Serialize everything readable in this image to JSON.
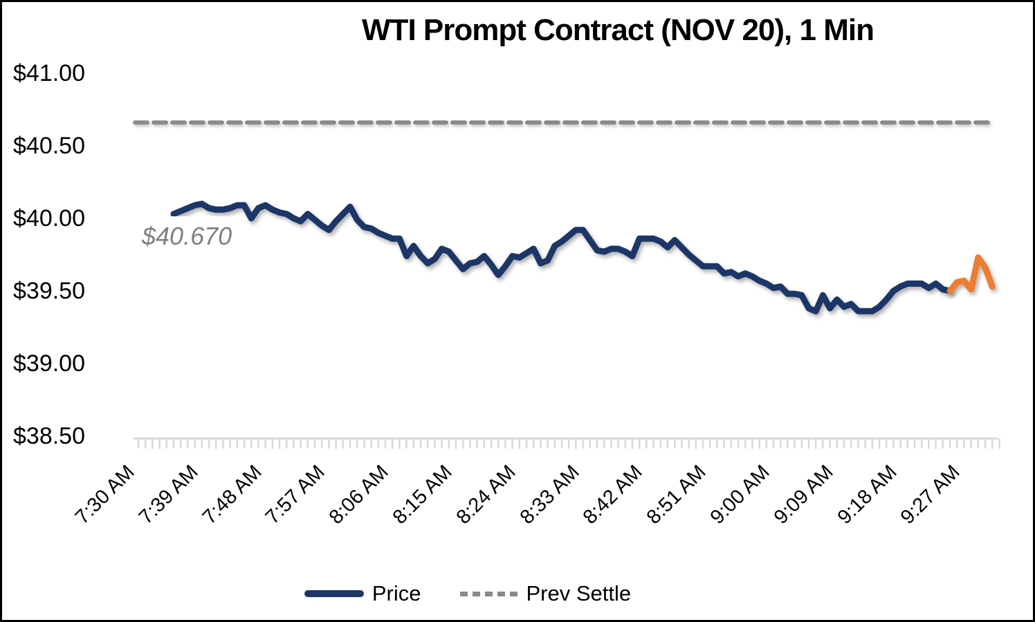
{
  "title": "WTI Prompt Contract (NOV 20), 1 Min",
  "annotation": {
    "text": "$40.670"
  },
  "legend": [
    {
      "label": "Price",
      "type": "solid",
      "color": "#1b3667"
    },
    {
      "label": "Prev Settle",
      "type": "dashed",
      "color": "#8a8a8a"
    }
  ],
  "chart_data": {
    "type": "line",
    "title": "WTI Prompt Contract (NOV 20), 1 Min",
    "ylabel": "",
    "xlabel": "",
    "ylim": [
      38.5,
      41.0
    ],
    "y_ticks": [
      41.0,
      40.5,
      40.0,
      39.5,
      39.0,
      38.5
    ],
    "y_tick_labels": [
      "$41.00",
      "$40.50",
      "$40.00",
      "$39.50",
      "$39.00",
      "$38.50"
    ],
    "x_tick_labels": [
      "7:30 AM",
      "7:39 AM",
      "7:48 AM",
      "7:57 AM",
      "8:06 AM",
      "8:15 AM",
      "8:24 AM",
      "8:33 AM",
      "8:42 AM",
      "8:51 AM",
      "9:00 AM",
      "9:09 AM",
      "9:18 AM",
      "9:27 AM"
    ],
    "x_label_interval_minutes": 9,
    "axis_minutes": 122,
    "grid": false,
    "legend_position": "bottom",
    "prev_settle": 40.67,
    "prev_settle_label": "$40.670",
    "price_color": "#1b3667",
    "latest_color": "#ed7d31",
    "settle_color": "#8a8a8a",
    "axis_color": "#d9d9d9",
    "highlight_tail_points": 7,
    "series": [
      {
        "name": "Price",
        "interval_minutes": 1,
        "start_time": "7:35 AM",
        "end_time": "9:31 AM",
        "start_offset_minutes": 5,
        "values": [
          40.04,
          40.06,
          40.08,
          40.1,
          40.11,
          40.08,
          40.07,
          40.07,
          40.08,
          40.1,
          40.1,
          40.01,
          40.08,
          40.1,
          40.07,
          40.05,
          40.04,
          40.01,
          39.99,
          40.04,
          40.0,
          39.96,
          39.93,
          39.99,
          40.04,
          40.09,
          40.0,
          39.95,
          39.94,
          39.91,
          39.89,
          39.87,
          39.87,
          39.75,
          39.82,
          39.75,
          39.7,
          39.73,
          39.8,
          39.78,
          39.72,
          39.66,
          39.7,
          39.71,
          39.75,
          39.69,
          39.62,
          39.68,
          39.75,
          39.74,
          39.77,
          39.8,
          39.7,
          39.72,
          39.82,
          39.85,
          39.89,
          39.93,
          39.93,
          39.86,
          39.79,
          39.78,
          39.8,
          39.8,
          39.78,
          39.75,
          39.87,
          39.87,
          39.87,
          39.85,
          39.81,
          39.86,
          39.81,
          39.76,
          39.72,
          39.68,
          39.68,
          39.68,
          39.63,
          39.64,
          39.61,
          39.63,
          39.61,
          39.58,
          39.56,
          39.53,
          39.54,
          39.49,
          39.49,
          39.48,
          39.39,
          39.37,
          39.48,
          39.39,
          39.45,
          39.4,
          39.42,
          39.37,
          39.37,
          39.37,
          39.4,
          39.45,
          39.51,
          39.54,
          39.56,
          39.56,
          39.56,
          39.53,
          39.56,
          39.52,
          39.51,
          39.57,
          39.58,
          39.52,
          39.74,
          39.67,
          39.54
        ]
      },
      {
        "name": "Prev Settle",
        "value": 40.67
      }
    ]
  }
}
